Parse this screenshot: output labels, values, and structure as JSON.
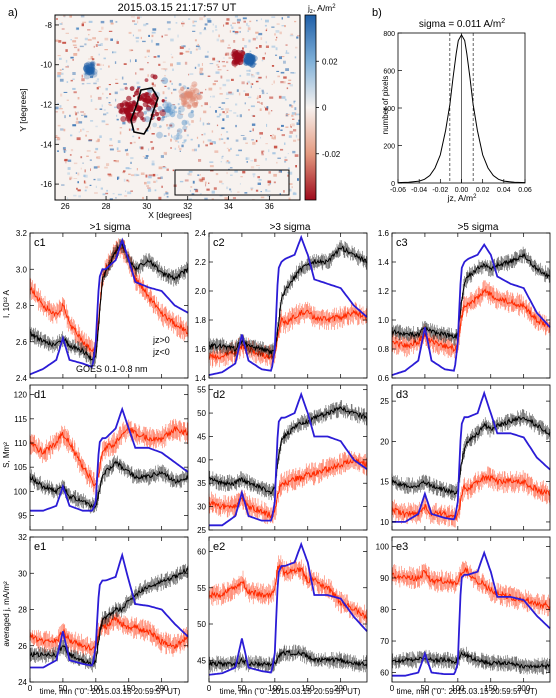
{
  "panel_a": {
    "letter": "a)",
    "title": "2015.03.15 21:17:57 UT",
    "xlabel": "X [degrees]",
    "ylabel": "Y [degrees]",
    "xticks": [
      26,
      28,
      30,
      32,
      34,
      36
    ],
    "yticks": [
      -8,
      -10,
      -12,
      -14,
      -16
    ],
    "cbar_label": "j",
    "cbar_sub": "z",
    "cbar_unit": ", A/m",
    "cbar_sup": "2",
    "cbar_ticks": [
      "0.02",
      "0",
      "-0.02"
    ],
    "colors": {
      "pos": "#1f5fa8",
      "neg": "#9e0a1c",
      "zero": "#f7f2ef"
    }
  },
  "panel_b": {
    "letter": "b)",
    "title": "sigma = 0.011 A/m",
    "title_sup": "2",
    "xlabel": "jz, A/m",
    "xlabel_sup": "2",
    "ylabel": "number of pixels"
  },
  "row_headers": [
    ">1 sigma",
    ">3 sigma",
    ">5 sigma"
  ],
  "ylabels": {
    "c": "I, 10¹² A",
    "d": "S, Mm²",
    "e": "averaged j, mA/m²"
  },
  "xlabel_bottom": "time, min (\"0\": 2015.03.15 20:59:57 UT)",
  "legend": {
    "pos": "jz>0",
    "neg": "jz<0",
    "goes": "GOES 0.1-0.8 nm"
  },
  "colors": {
    "pos": "#000000",
    "neg": "#ff2a00",
    "goes": "#2b1cd6"
  },
  "chart_data": [
    {
      "id": "b",
      "type": "line",
      "title": "sigma = 0.011 A/m2",
      "xlabel": "jz, A/m2",
      "ylabel": "number of pixels",
      "xlim": [
        -0.06,
        0.06
      ],
      "ylim": [
        0,
        800
      ],
      "xticks": [
        "-0.06",
        "-0.04",
        "-0.02",
        "0.00",
        "0.02",
        "0.04",
        "0.06"
      ],
      "yticks": [
        0,
        200,
        400,
        600,
        800
      ],
      "sigma": 0.011,
      "x": [
        -0.06,
        -0.05,
        -0.04,
        -0.035,
        -0.03,
        -0.025,
        -0.02,
        -0.015,
        -0.011,
        -0.008,
        -0.005,
        -0.003,
        0,
        0.003,
        0.005,
        0.008,
        0.011,
        0.015,
        0.02,
        0.025,
        0.03,
        0.035,
        0.04,
        0.05,
        0.06
      ],
      "y": [
        2,
        4,
        10,
        20,
        40,
        80,
        150,
        280,
        420,
        560,
        690,
        760,
        790,
        760,
        690,
        560,
        420,
        280,
        150,
        80,
        40,
        20,
        10,
        4,
        2
      ]
    },
    {
      "id": "c1",
      "label": "c1",
      "type": "line",
      "xlim": [
        0,
        240
      ],
      "ylim": [
        2.4,
        3.2
      ],
      "yticks": [
        "2.4",
        "2.6",
        "2.8",
        "3.0",
        "3.2"
      ],
      "xticks": [
        0,
        50,
        100,
        150,
        200
      ],
      "x": [
        0,
        20,
        40,
        50,
        60,
        80,
        95,
        100,
        105,
        110,
        115,
        130,
        140,
        150,
        160,
        180,
        200,
        220,
        240
      ],
      "series": [
        {
          "name": "jz>0",
          "values": [
            2.65,
            2.6,
            2.58,
            2.62,
            2.58,
            2.55,
            2.5,
            2.52,
            2.72,
            2.95,
            2.98,
            3.1,
            3.14,
            3.05,
            3.0,
            3.05,
            2.98,
            2.95,
            3.0
          ]
        },
        {
          "name": "jz<0",
          "values": [
            2.9,
            2.8,
            2.75,
            2.8,
            2.7,
            2.6,
            2.55,
            2.56,
            2.75,
            2.95,
            3.0,
            3.1,
            3.12,
            3.05,
            2.95,
            2.85,
            2.75,
            2.7,
            2.65
          ]
        },
        {
          "name": "GOES 0.1-0.8 nm",
          "values": [
            2.42,
            2.45,
            2.5,
            2.62,
            2.5,
            2.48,
            2.46,
            2.6,
            2.95,
            3.0,
            3.0,
            3.05,
            3.16,
            3.05,
            2.93,
            2.9,
            2.88,
            2.8,
            2.76
          ]
        }
      ]
    },
    {
      "id": "c2",
      "label": "c2",
      "type": "line",
      "xlim": [
        0,
        240
      ],
      "ylim": [
        1.4,
        2.4
      ],
      "yticks": [
        "1.4",
        "1.6",
        "1.8",
        "2.0",
        "2.2",
        "2.4"
      ],
      "xticks": [
        0,
        50,
        100,
        150,
        200
      ],
      "x": [
        0,
        20,
        40,
        50,
        60,
        80,
        95,
        100,
        105,
        110,
        115,
        130,
        140,
        150,
        160,
        180,
        200,
        220,
        240
      ],
      "series": [
        {
          "name": "jz>0",
          "values": [
            1.62,
            1.62,
            1.6,
            1.66,
            1.62,
            1.6,
            1.58,
            1.6,
            1.75,
            1.95,
            2.0,
            2.1,
            2.15,
            2.18,
            2.2,
            2.2,
            2.3,
            2.25,
            2.2
          ]
        },
        {
          "name": "jz<0",
          "values": [
            1.55,
            1.55,
            1.58,
            1.62,
            1.6,
            1.56,
            1.55,
            1.56,
            1.7,
            1.8,
            1.78,
            1.82,
            1.85,
            1.85,
            1.82,
            1.8,
            1.82,
            1.85,
            1.82
          ]
        },
        {
          "name": "GOES 0.1-0.8 nm",
          "values": [
            1.42,
            1.44,
            1.5,
            1.7,
            1.52,
            1.46,
            1.45,
            1.6,
            2.15,
            2.2,
            2.22,
            2.25,
            2.37,
            2.25,
            2.08,
            2.05,
            2.02,
            1.9,
            1.82
          ]
        }
      ]
    },
    {
      "id": "c3",
      "label": "c3",
      "type": "line",
      "xlim": [
        0,
        240
      ],
      "ylim": [
        0.6,
        1.6
      ],
      "yticks": [
        "0.6",
        "0.8",
        "1.0",
        "1.2",
        "1.4",
        "1.6"
      ],
      "xticks": [
        0,
        50,
        100,
        150,
        200
      ],
      "x": [
        0,
        20,
        40,
        50,
        60,
        80,
        95,
        100,
        105,
        110,
        115,
        130,
        140,
        150,
        160,
        180,
        200,
        220,
        240
      ],
      "series": [
        {
          "name": "jz>0",
          "values": [
            0.92,
            0.9,
            0.9,
            0.95,
            0.92,
            0.9,
            0.88,
            0.9,
            1.1,
            1.25,
            1.3,
            1.35,
            1.38,
            1.35,
            1.38,
            1.4,
            1.45,
            1.35,
            1.3
          ]
        },
        {
          "name": "jz<0",
          "values": [
            0.85,
            0.82,
            0.85,
            0.9,
            0.85,
            0.82,
            0.8,
            0.82,
            1.0,
            1.1,
            1.1,
            1.15,
            1.2,
            1.18,
            1.15,
            1.12,
            1.1,
            1.0,
            0.95
          ]
        },
        {
          "name": "GOES 0.1-0.8 nm",
          "values": [
            0.62,
            0.65,
            0.72,
            0.95,
            0.72,
            0.66,
            0.65,
            0.85,
            1.35,
            1.4,
            1.42,
            1.45,
            1.52,
            1.45,
            1.3,
            1.25,
            1.22,
            1.05,
            0.95
          ]
        }
      ]
    },
    {
      "id": "d1",
      "label": "d1",
      "type": "line",
      "xlim": [
        0,
        240
      ],
      "ylim": [
        92,
        122
      ],
      "yticks": [
        "95",
        "100",
        "105",
        "110",
        "115",
        "120"
      ],
      "xticks": [
        0,
        50,
        100,
        150,
        200
      ],
      "x": [
        0,
        20,
        40,
        50,
        60,
        80,
        95,
        100,
        105,
        110,
        115,
        130,
        140,
        150,
        160,
        180,
        200,
        220,
        240
      ],
      "series": [
        {
          "name": "jz>0",
          "values": [
            103,
            101,
            100,
            101,
            99,
            98,
            97,
            97,
            100,
            103,
            104,
            106,
            105,
            104,
            103,
            103,
            104,
            102,
            103
          ]
        },
        {
          "name": "jz<0",
          "values": [
            110,
            108,
            110,
            112,
            110,
            105,
            102,
            101,
            104,
            108,
            109,
            110,
            112,
            113,
            112,
            111,
            111,
            113,
            112
          ]
        },
        {
          "name": "GOES 0.1-0.8 nm",
          "values": [
            96,
            96,
            97,
            101,
            97,
            96,
            96,
            98,
            110,
            111,
            111,
            113,
            117,
            113,
            109,
            109,
            108,
            106,
            104
          ]
        }
      ]
    },
    {
      "id": "d2",
      "label": "d2",
      "type": "line",
      "xlim": [
        0,
        240
      ],
      "ylim": [
        25,
        56
      ],
      "yticks": [
        "25",
        "30",
        "35",
        "40",
        "45",
        "50",
        "55"
      ],
      "xticks": [
        0,
        50,
        100,
        150,
        200
      ],
      "x": [
        0,
        20,
        40,
        50,
        60,
        80,
        95,
        100,
        105,
        110,
        115,
        130,
        140,
        150,
        160,
        180,
        200,
        220,
        240
      ],
      "series": [
        {
          "name": "jz>0",
          "values": [
            36,
            35,
            35,
            36,
            35,
            34,
            33,
            34,
            40,
            44,
            45,
            47,
            48,
            48,
            49,
            50,
            51,
            50,
            49
          ]
        },
        {
          "name": "jz<0",
          "values": [
            31,
            30,
            30,
            32,
            30,
            29,
            28,
            29,
            33,
            35,
            35,
            36,
            36,
            37,
            37,
            38,
            39,
            40,
            39
          ]
        },
        {
          "name": "GOES 0.1-0.8 nm",
          "values": [
            26,
            26,
            28,
            33,
            28,
            27,
            27,
            31,
            48,
            49,
            49,
            50,
            54,
            50,
            45,
            45,
            44,
            40,
            38
          ]
        }
      ]
    },
    {
      "id": "d3",
      "label": "d3",
      "type": "line",
      "xlim": [
        0,
        240
      ],
      "ylim": [
        9,
        27
      ],
      "yticks": [
        "10",
        "15",
        "20",
        "25"
      ],
      "xticks": [
        0,
        50,
        100,
        150,
        200
      ],
      "x": [
        0,
        20,
        40,
        50,
        60,
        80,
        95,
        100,
        105,
        110,
        115,
        130,
        140,
        150,
        160,
        180,
        200,
        220,
        240
      ],
      "series": [
        {
          "name": "jz>0",
          "values": [
            15,
            14.5,
            14.5,
            15,
            14.5,
            14,
            13.5,
            14,
            17,
            19,
            20,
            21,
            22,
            21.5,
            22,
            22.5,
            23,
            22,
            21
          ]
        },
        {
          "name": "jz<0",
          "values": [
            11.5,
            11,
            11,
            12,
            11,
            11,
            10.5,
            11,
            13,
            14.5,
            14,
            15,
            15.5,
            15.5,
            15,
            15,
            15,
            14,
            13.5
          ]
        },
        {
          "name": "GOES 0.1-0.8 nm",
          "values": [
            10,
            10,
            11,
            13.5,
            11,
            10.5,
            10.3,
            12.5,
            22,
            23,
            23,
            23.5,
            26,
            23.5,
            21,
            21,
            20.5,
            18,
            16.5
          ]
        }
      ]
    },
    {
      "id": "e1",
      "label": "e1",
      "type": "line",
      "xlim": [
        0,
        240
      ],
      "ylim": [
        24,
        32
      ],
      "yticks": [
        "24",
        "26",
        "28",
        "30",
        "32"
      ],
      "xticks": [
        0,
        50,
        100,
        150,
        200
      ],
      "x": [
        0,
        20,
        40,
        50,
        60,
        80,
        95,
        100,
        105,
        110,
        115,
        130,
        140,
        150,
        160,
        180,
        200,
        220,
        240
      ],
      "series": [
        {
          "name": "jz>0",
          "values": [
            25.5,
            25.5,
            25.5,
            26,
            25.5,
            25.2,
            25,
            25.2,
            26.5,
            27.5,
            27.5,
            28,
            28,
            28.5,
            28.8,
            29.3,
            29.5,
            29.8,
            30.2
          ]
        },
        {
          "name": "jz<0",
          "values": [
            26.5,
            26.2,
            26.2,
            26.8,
            26.3,
            26,
            25.8,
            26,
            26.8,
            27.2,
            27,
            27.5,
            27.2,
            27,
            27,
            26.8,
            26.2,
            26,
            26.5
          ]
        },
        {
          "name": "GOES 0.1-0.8 nm",
          "values": [
            24.8,
            24.8,
            25.2,
            26.8,
            25.2,
            25,
            24.9,
            26,
            29.3,
            29.6,
            29.6,
            29.8,
            31,
            29.6,
            28.3,
            28.2,
            28,
            27.2,
            26.5
          ]
        }
      ]
    },
    {
      "id": "e2",
      "label": "e2",
      "type": "line",
      "xlim": [
        0,
        240
      ],
      "ylim": [
        42,
        62
      ],
      "yticks": [
        "45",
        "50",
        "55",
        "60"
      ],
      "xticks": [
        0,
        50,
        100,
        150,
        200
      ],
      "x": [
        0,
        20,
        40,
        50,
        60,
        80,
        95,
        100,
        105,
        110,
        115,
        130,
        140,
        150,
        160,
        180,
        200,
        220,
        240
      ],
      "series": [
        {
          "name": "jz>0",
          "values": [
            44.5,
            44.5,
            44.5,
            45,
            44.5,
            44.5,
            44.3,
            44.5,
            45.5,
            46,
            46,
            46,
            46,
            45.5,
            45,
            45,
            45,
            44.5,
            44.5
          ]
        },
        {
          "name": "jz<0",
          "values": [
            54,
            54,
            55,
            56,
            54.5,
            54,
            54,
            55,
            58,
            58,
            57,
            57.5,
            57.5,
            56,
            56,
            55,
            53,
            52,
            51
          ]
        },
        {
          "name": "GOES 0.1-0.8 nm",
          "values": [
            43,
            43.2,
            44,
            48,
            44,
            43.5,
            43.3,
            46,
            57,
            58,
            58,
            58.5,
            61,
            58.5,
            54,
            54,
            53.5,
            51,
            49
          ]
        }
      ]
    },
    {
      "id": "e3",
      "label": "e3",
      "type": "line",
      "xlim": [
        0,
        240
      ],
      "ylim": [
        57,
        103
      ],
      "yticks": [
        "60",
        "70",
        "80",
        "90",
        "100"
      ],
      "xticks": [
        0,
        50,
        100,
        150,
        200
      ],
      "x": [
        0,
        20,
        40,
        50,
        60,
        80,
        95,
        100,
        105,
        110,
        115,
        130,
        140,
        150,
        160,
        180,
        200,
        220,
        240
      ],
      "series": [
        {
          "name": "jz>0",
          "values": [
            63.5,
            64,
            64,
            65,
            64,
            64,
            63.5,
            64,
            66,
            66,
            65,
            64,
            63.5,
            63,
            63,
            63,
            62,
            62,
            62
          ]
        },
        {
          "name": "jz<0",
          "values": [
            91,
            90,
            90,
            92,
            89,
            89,
            88,
            89,
            91,
            93,
            92,
            89,
            88,
            86,
            85,
            84,
            83,
            82,
            81
          ]
        },
        {
          "name": "GOES 0.1-0.8 nm",
          "values": [
            59,
            59,
            60,
            66,
            60,
            59.5,
            59.5,
            63,
            90,
            91,
            91,
            92,
            98,
            92,
            84,
            84,
            83,
            78,
            74
          ]
        }
      ]
    }
  ]
}
